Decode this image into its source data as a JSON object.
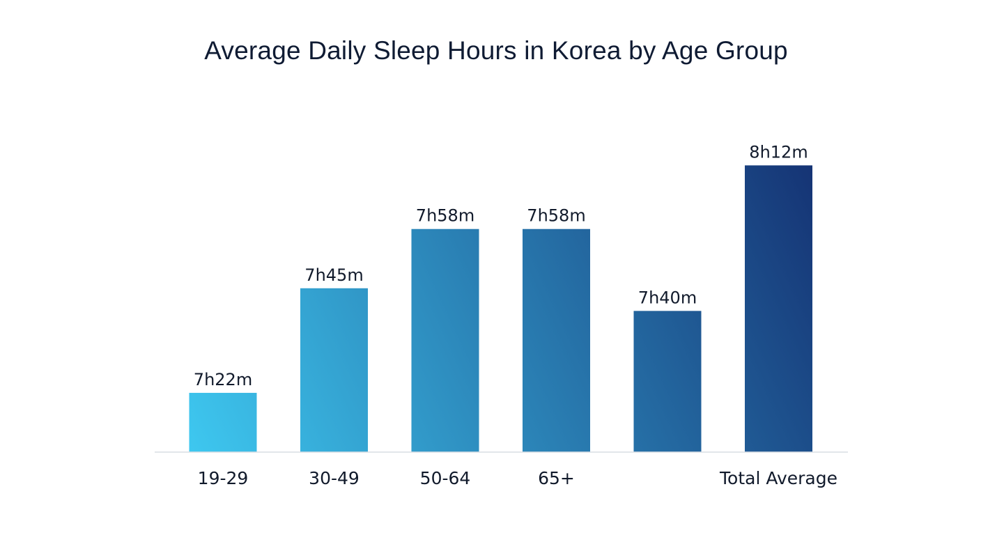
{
  "chart_data": {
    "type": "bar",
    "title": "Average Daily Sleep Hours in Korea by Age Group",
    "xlabel": "",
    "ylabel": "",
    "categories": [
      "19-29",
      "30-49",
      "50-64",
      "65+",
      "",
      "Total Average"
    ],
    "values": [
      7.367,
      7.75,
      7.967,
      7.967,
      7.667,
      8.2
    ],
    "value_labels": [
      "7h22m",
      "7h45m",
      "7h58m",
      "7h58m",
      "7h40m",
      "8h12m"
    ],
    "grid": false,
    "legend": "none",
    "colors": {
      "gradient_start": "#3ec8f0",
      "gradient_end": "#153374",
      "baseline": "#d9dde3"
    }
  }
}
